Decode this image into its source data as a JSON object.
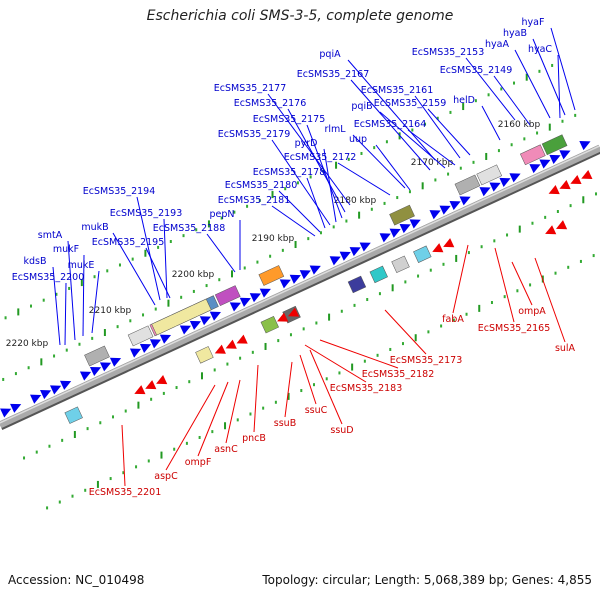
{
  "title": "Escherichia coli SMS-3-5, complete genome",
  "accession": "Accession: NC_010498",
  "topology": "Topology: circular; Length: 5,068,389 bp; Genes: 4,855",
  "colors": {
    "forward_label": "#0000cc",
    "reverse_label": "#cc0000",
    "forward_arrow": "#0000ee",
    "reverse_arrow": "#ee0000",
    "tick_major": "#229922",
    "backbone": "#888888"
  },
  "ticks": [
    "2160 kbp",
    "2170 kbp",
    "2180 kbp",
    "2190 kbp",
    "2200 kbp",
    "2210 kbp",
    "2220 kbp"
  ],
  "forward_genes": [
    "hyaF",
    "hyaB",
    "hyaA",
    "hyaC",
    "EcSMS35_2153",
    "EcSMS35_2149",
    "helD",
    "pqiA",
    "EcSMS35_2167",
    "EcSMS35_2161",
    "pqiB",
    "EcSMS35_2159",
    "EcSMS35_2164",
    "EcSMS35_2177",
    "EcSMS35_2176",
    "EcSMS35_2175",
    "rlmL",
    "uup",
    "EcSMS35_2179",
    "pyrD",
    "EcSMS35_2172",
    "EcSMS35_2178",
    "EcSMS35_2180",
    "EcSMS35_2181",
    "pepN",
    "EcSMS35_2188",
    "EcSMS35_2194",
    "EcSMS35_2193",
    "mukB",
    "EcSMS35_2195",
    "smtA",
    "mukF",
    "kdsB",
    "mukE",
    "EcSMS35_2200"
  ],
  "reverse_genes": [
    "fabA",
    "EcSMS35_2165",
    "ompA",
    "sulA",
    "EcSMS35_2173",
    "EcSMS35_2182",
    "EcSMS35_2183",
    "ssuD",
    "ssuC",
    "ssuB",
    "pncB",
    "asnC",
    "ompF",
    "aspC",
    "EcSMS35_2201"
  ]
}
